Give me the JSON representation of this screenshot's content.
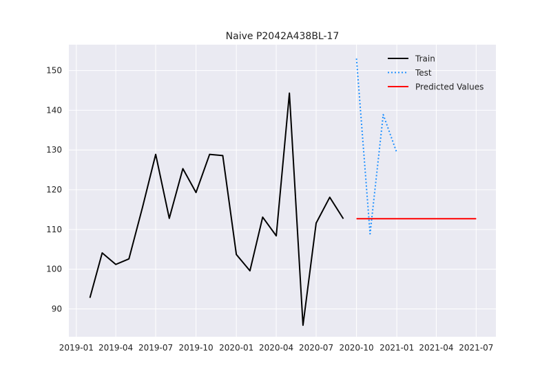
{
  "chart_data": {
    "type": "line",
    "title": "Naive P2042A438BL-17",
    "xlabel": "",
    "ylabel": "",
    "x_axis": {
      "type": "date",
      "range": [
        "2018-12-15",
        "2021-08-15"
      ],
      "ticks": [
        {
          "date": "2019-01-01",
          "label": "2019-01"
        },
        {
          "date": "2019-04-01",
          "label": "2019-04"
        },
        {
          "date": "2019-07-01",
          "label": "2019-07"
        },
        {
          "date": "2019-10-01",
          "label": "2019-10"
        },
        {
          "date": "2020-01-01",
          "label": "2020-01"
        },
        {
          "date": "2020-04-01",
          "label": "2020-04"
        },
        {
          "date": "2020-07-01",
          "label": "2020-07"
        },
        {
          "date": "2020-10-01",
          "label": "2020-10"
        },
        {
          "date": "2021-01-01",
          "label": "2021-01"
        },
        {
          "date": "2021-04-01",
          "label": "2021-04"
        },
        {
          "date": "2021-07-01",
          "label": "2021-07"
        }
      ]
    },
    "y_axis": {
      "range": [
        83,
        156.5
      ],
      "ticks": [
        90,
        100,
        110,
        120,
        130,
        140,
        150
      ]
    },
    "grid": true,
    "background": "#eaeaf2",
    "grid_color": "#ffffff",
    "legend_position": "top-right",
    "series": [
      {
        "name": "Train",
        "color": "#000000",
        "style": "solid",
        "points": [
          {
            "x": "2019-02-01",
            "y": 92.8
          },
          {
            "x": "2019-03-01",
            "y": 104.1
          },
          {
            "x": "2019-04-01",
            "y": 101.2
          },
          {
            "x": "2019-05-01",
            "y": 102.6
          },
          {
            "x": "2019-06-01",
            "y": 115.6
          },
          {
            "x": "2019-07-01",
            "y": 128.9
          },
          {
            "x": "2019-08-01",
            "y": 112.8
          },
          {
            "x": "2019-09-01",
            "y": 125.3
          },
          {
            "x": "2019-10-01",
            "y": 119.3
          },
          {
            "x": "2019-11-01",
            "y": 128.9
          },
          {
            "x": "2019-12-01",
            "y": 128.6
          },
          {
            "x": "2020-01-01",
            "y": 103.7
          },
          {
            "x": "2020-02-01",
            "y": 99.6
          },
          {
            "x": "2020-03-01",
            "y": 113.1
          },
          {
            "x": "2020-04-01",
            "y": 108.4
          },
          {
            "x": "2020-05-01",
            "y": 144.3
          },
          {
            "x": "2020-06-01",
            "y": 85.9
          },
          {
            "x": "2020-07-01",
            "y": 111.6
          },
          {
            "x": "2020-08-01",
            "y": 118.1
          },
          {
            "x": "2020-09-01",
            "y": 112.7
          }
        ]
      },
      {
        "name": "Test",
        "color": "#1e90ff",
        "style": "dotted",
        "points": [
          {
            "x": "2020-10-01",
            "y": 153.0
          },
          {
            "x": "2020-11-01",
            "y": 108.9
          },
          {
            "x": "2020-12-01",
            "y": 138.9
          },
          {
            "x": "2021-01-01",
            "y": 129.3
          }
        ]
      },
      {
        "name": "Predicted Values",
        "color": "#ff0000",
        "style": "solid",
        "points": [
          {
            "x": "2020-10-01",
            "y": 112.7
          },
          {
            "x": "2021-07-01",
            "y": 112.7
          }
        ]
      }
    ]
  }
}
